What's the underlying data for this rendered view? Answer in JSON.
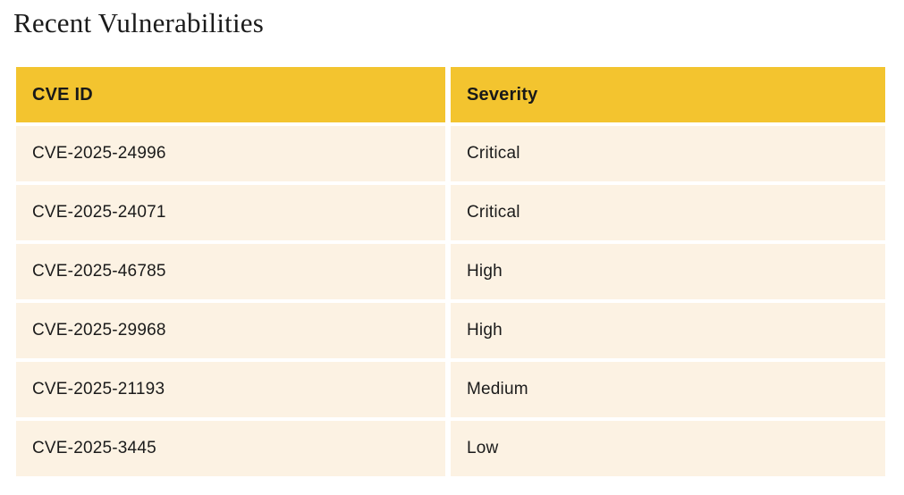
{
  "page": {
    "title": "Recent Vulnerabilities"
  },
  "table": {
    "columns": [
      {
        "label": "CVE ID"
      },
      {
        "label": "Severity"
      }
    ],
    "rows": [
      {
        "cve_id": "CVE-2025-24996",
        "severity": "Critical"
      },
      {
        "cve_id": "CVE-2025-24071",
        "severity": "Critical"
      },
      {
        "cve_id": "CVE-2025-46785",
        "severity": "High"
      },
      {
        "cve_id": "CVE-2025-29968",
        "severity": "High"
      },
      {
        "cve_id": "CVE-2025-21193",
        "severity": "Medium"
      },
      {
        "cve_id": "CVE-2025-3445",
        "severity": "Low"
      }
    ]
  },
  "colors": {
    "header_bg": "#f3c42f",
    "row_bg": "#fcf2e3",
    "text": "#1b1b1b",
    "header_text": "#191919",
    "gutter": "#ffffff"
  }
}
